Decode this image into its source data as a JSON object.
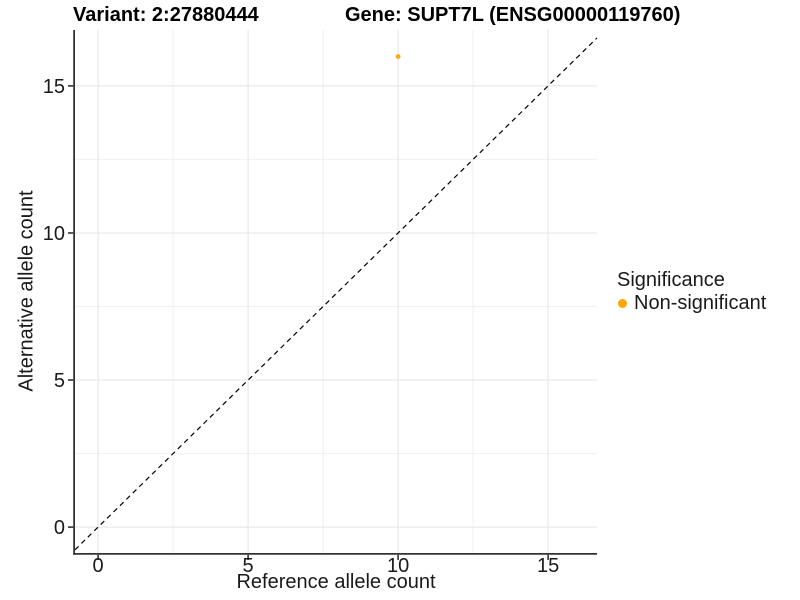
{
  "titles": {
    "variant": "Variant: 2:27880444",
    "gene": "Gene: SUPT7L (ENSG00000119760)"
  },
  "legend": {
    "title": "Significance",
    "items": [
      {
        "label": "Non-significant",
        "color": "#FFA500",
        "marker": "point-icon"
      }
    ]
  },
  "colors": {
    "point": "#FFA500",
    "axis": "#333333",
    "tick_label": "#1a1a1a",
    "grid_major": "#E4E4E4",
    "grid_minor": "#F0F0F0",
    "identity_line": "#000000",
    "background": "#FFFFFF"
  },
  "chart_data": {
    "type": "scatter",
    "titles": [
      "Variant: 2:27880444",
      "Gene: SUPT7L (ENSG00000119760)"
    ],
    "xlabel": "Reference allele count",
    "ylabel": "Alternative allele count",
    "xlim": [
      -0.77,
      16.63
    ],
    "ylim": [
      -0.88,
      16.9
    ],
    "x_ticks": [
      0,
      5,
      10,
      15
    ],
    "y_ticks": [
      0,
      5,
      10,
      15
    ],
    "x_minor_ticks": [
      2.5,
      7.5,
      12.5
    ],
    "y_minor_ticks": [
      2.5,
      7.5,
      12.5
    ],
    "grid": "major+minor",
    "legend_position": "right",
    "series": [
      {
        "name": "Non-significant",
        "color": "#FFA500",
        "points": [
          [
            10,
            16
          ]
        ]
      }
    ],
    "reference_line": {
      "style": "dashed",
      "equation": "y = x",
      "color": "#000000"
    }
  }
}
